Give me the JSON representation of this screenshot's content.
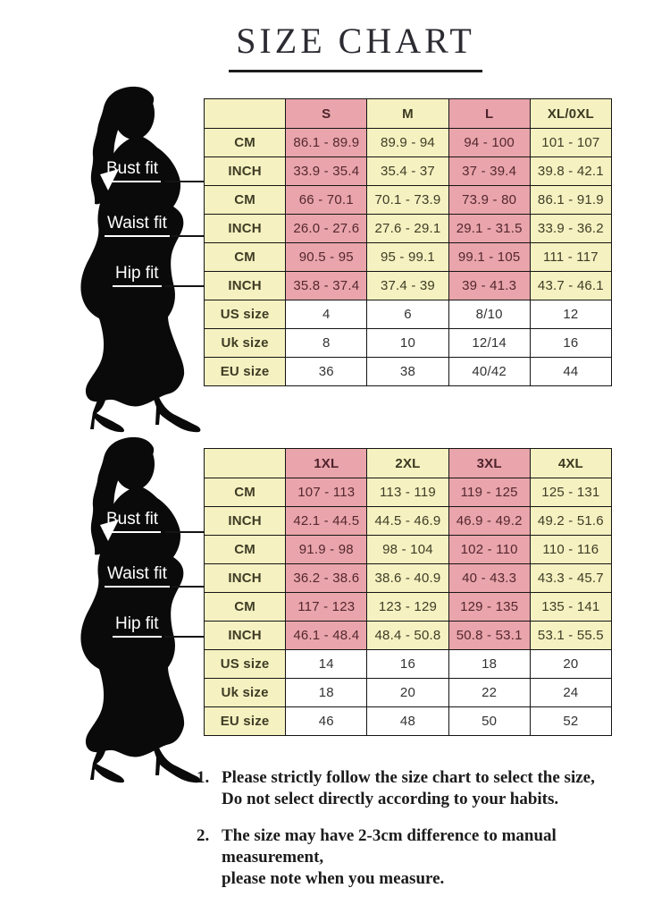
{
  "title": "SIZE CHART",
  "figure_labels": {
    "bust": "Bust fit",
    "waist": "Waist fit",
    "hip": "Hip fit"
  },
  "colors": {
    "cell_yellow": "#f5f1c1",
    "cell_pink": "#e9a5ab",
    "cell_white": "#ffffff",
    "border": "#141414",
    "silhouette": "#0a0a0a"
  },
  "table1": {
    "columns": [
      "S",
      "M",
      "L",
      "XL/0XL"
    ],
    "rows": [
      {
        "label": "CM",
        "values": [
          "86.1 - 89.9",
          "89.9 - 94",
          "94 - 100",
          "101 - 107"
        ]
      },
      {
        "label": "INCH",
        "values": [
          "33.9 - 35.4",
          "35.4 - 37",
          "37 - 39.4",
          "39.8 - 42.1"
        ]
      },
      {
        "label": "CM",
        "values": [
          "66 - 70.1",
          "70.1 - 73.9",
          "73.9 - 80",
          "86.1 - 91.9"
        ]
      },
      {
        "label": "INCH",
        "values": [
          "26.0 - 27.6",
          "27.6 - 29.1",
          "29.1 - 31.5",
          "33.9 - 36.2"
        ]
      },
      {
        "label": "CM",
        "values": [
          "90.5 - 95",
          "95 - 99.1",
          "99.1 - 105",
          "111 - 117"
        ]
      },
      {
        "label": "INCH",
        "values": [
          "35.8 - 37.4",
          "37.4 - 39",
          "39 - 41.3",
          "43.7 - 46.1"
        ]
      },
      {
        "label": "US size",
        "values": [
          "4",
          "6",
          "8/10",
          "12"
        ],
        "plain": true
      },
      {
        "label": "Uk size",
        "values": [
          "8",
          "10",
          "12/14",
          "16"
        ],
        "plain": true
      },
      {
        "label": "EU size",
        "values": [
          "36",
          "38",
          "40/42",
          "44"
        ],
        "plain": true
      }
    ]
  },
  "table2": {
    "columns": [
      "1XL",
      "2XL",
      "3XL",
      "4XL"
    ],
    "rows": [
      {
        "label": "CM",
        "values": [
          "107 - 113",
          "113 - 119",
          "119 - 125",
          "125 - 131"
        ]
      },
      {
        "label": "INCH",
        "values": [
          "42.1 - 44.5",
          "44.5 - 46.9",
          "46.9 - 49.2",
          "49.2 - 51.6"
        ]
      },
      {
        "label": "CM",
        "values": [
          "91.9 - 98",
          "98 - 104",
          "102 - 110",
          "110 - 116"
        ]
      },
      {
        "label": "INCH",
        "values": [
          "36.2 - 38.6",
          "38.6 - 40.9",
          "40 - 43.3",
          "43.3 - 45.7"
        ]
      },
      {
        "label": "CM",
        "values": [
          "117 - 123",
          "123 - 129",
          "129 - 135",
          "135 - 141"
        ]
      },
      {
        "label": "INCH",
        "values": [
          "46.1 - 48.4",
          "48.4 - 50.8",
          "50.8 - 53.1",
          "53.1 - 55.5"
        ]
      },
      {
        "label": "US size",
        "values": [
          "14",
          "16",
          "18",
          "20"
        ],
        "plain": true
      },
      {
        "label": "Uk size",
        "values": [
          "18",
          "20",
          "22",
          "24"
        ],
        "plain": true
      },
      {
        "label": "EU size",
        "values": [
          "46",
          "48",
          "50",
          "52"
        ],
        "plain": true
      }
    ]
  },
  "notes": [
    {
      "num": "1.",
      "line1": "Please strictly follow the size chart to select the size,",
      "line2": "Do not select directly according to your habits."
    },
    {
      "num": "2.",
      "line1": "The size may have 2-3cm difference  to manual measurement,",
      "line2": "please note when you measure."
    }
  ]
}
